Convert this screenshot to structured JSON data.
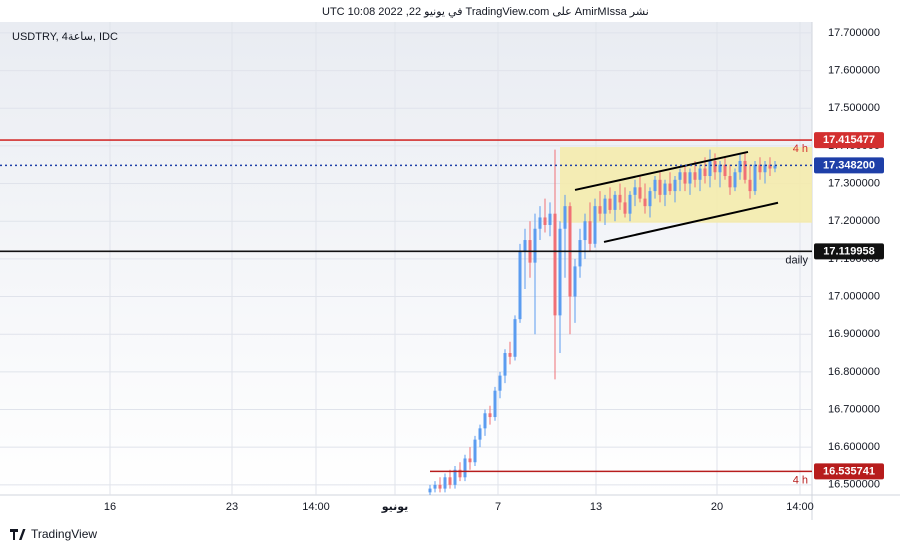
{
  "chart_data": {
    "type": "candlestick",
    "title": "نشر AmirMIssa على TradingView.com في يونيو 22, 2022 10:08 UTC",
    "subtitle": "USDTRY, 4ساعة, IDC",
    "source": "TradingView",
    "up_color": "#5b9cf0",
    "down_color": "#f07076",
    "grid": true,
    "xlim": [
      0,
      162.4
    ],
    "xticks": [
      {
        "value": 22,
        "label": "16"
      },
      {
        "value": 46.4,
        "label": "23"
      },
      {
        "value": 63.2,
        "label": "14:00"
      },
      {
        "value": 79,
        "label": "يونيو"
      },
      {
        "value": 99.6,
        "label": "7"
      },
      {
        "value": 119.2,
        "label": "13"
      },
      {
        "value": 143.4,
        "label": "20"
      },
      {
        "value": 160,
        "label": "14:00"
      }
    ],
    "ylim": [
      16.473,
      17.729
    ],
    "yticks": [
      {
        "value": 16.5,
        "label": "16.500000"
      },
      {
        "value": 16.6,
        "label": "16.600000"
      },
      {
        "value": 16.7,
        "label": "16.700000"
      },
      {
        "value": 16.8,
        "label": "16.800000"
      },
      {
        "value": 16.9,
        "label": "16.900000"
      },
      {
        "value": 17,
        "label": "17.000000"
      },
      {
        "value": 17.1,
        "label": "17.100000"
      },
      {
        "value": 17.2,
        "label": "17.200000"
      },
      {
        "value": 17.3,
        "label": "17.300000"
      },
      {
        "value": 17.4,
        "label": "17.400000"
      },
      {
        "value": 17.5,
        "label": "17.500000"
      },
      {
        "value": 17.6,
        "label": "17.600000"
      },
      {
        "value": 17.7,
        "label": "17.700000"
      }
    ],
    "x": [
      86,
      87,
      88,
      89,
      90,
      91,
      92,
      93,
      94,
      95,
      96,
      97,
      98,
      99,
      100,
      101,
      102,
      103,
      104,
      105,
      106,
      107,
      108,
      109,
      110,
      111,
      112,
      113,
      114,
      115,
      116,
      117,
      118,
      119,
      120,
      121,
      122,
      123,
      124,
      125,
      126,
      127,
      128,
      129,
      130,
      131,
      132,
      133,
      134,
      135,
      136,
      137,
      138,
      139,
      140,
      141,
      142,
      143,
      144,
      145,
      146,
      147,
      148,
      149,
      150,
      151,
      152,
      153,
      154,
      155
    ],
    "open": [
      16.48,
      16.49,
      16.5,
      16.49,
      16.52,
      16.5,
      16.54,
      16.52,
      16.57,
      16.56,
      16.62,
      16.65,
      16.69,
      16.68,
      16.75,
      16.79,
      16.85,
      16.84,
      16.94,
      17.12,
      17.15,
      17.09,
      17.18,
      17.21,
      17.19,
      17.22,
      16.95,
      17.18,
      17.24,
      17.0,
      17.08,
      17.15,
      17.2,
      17.14,
      17.24,
      17.22,
      17.26,
      17.23,
      17.27,
      17.25,
      17.22,
      17.27,
      17.29,
      17.26,
      17.24,
      17.28,
      17.31,
      17.27,
      17.3,
      17.28,
      17.31,
      17.33,
      17.3,
      17.33,
      17.31,
      17.34,
      17.32,
      17.36,
      17.33,
      17.35,
      17.32,
      17.29,
      17.33,
      17.36,
      17.31,
      17.28,
      17.35,
      17.33,
      17.35,
      17.34
    ],
    "high": [
      16.5,
      16.51,
      16.52,
      16.53,
      16.54,
      16.55,
      16.56,
      16.58,
      16.6,
      16.63,
      16.66,
      16.7,
      16.71,
      16.76,
      16.8,
      16.86,
      16.88,
      16.95,
      17.14,
      17.18,
      17.2,
      17.22,
      17.24,
      17.26,
      17.25,
      17.39,
      17.2,
      17.27,
      17.25,
      17.1,
      17.18,
      17.22,
      17.25,
      17.26,
      17.28,
      17.27,
      17.29,
      17.28,
      17.3,
      17.29,
      17.28,
      17.31,
      17.32,
      17.3,
      17.29,
      17.32,
      17.33,
      17.31,
      17.33,
      17.32,
      17.34,
      17.35,
      17.34,
      17.36,
      17.35,
      17.37,
      17.39,
      17.38,
      17.36,
      17.37,
      17.35,
      17.34,
      17.38,
      17.38,
      17.35,
      17.36,
      17.37,
      17.36,
      17.37,
      17.36
    ],
    "low": [
      16.47,
      16.48,
      16.48,
      16.48,
      16.49,
      16.49,
      16.51,
      16.51,
      16.54,
      16.55,
      16.6,
      16.63,
      16.66,
      16.67,
      16.73,
      16.77,
      16.82,
      16.83,
      16.93,
      17.02,
      17.05,
      16.9,
      17.15,
      17.17,
      17.16,
      16.78,
      16.85,
      17.05,
      16.9,
      16.93,
      17.05,
      17.1,
      17.12,
      17.13,
      17.2,
      17.19,
      17.22,
      17.2,
      17.23,
      17.21,
      17.2,
      17.24,
      17.25,
      17.22,
      17.21,
      17.26,
      17.25,
      17.24,
      17.27,
      17.25,
      17.28,
      17.28,
      17.27,
      17.29,
      17.28,
      17.3,
      17.29,
      17.31,
      17.29,
      17.31,
      17.27,
      17.28,
      17.31,
      17.3,
      17.26,
      17.27,
      17.31,
      17.3,
      17.32,
      17.33
    ],
    "close": [
      16.49,
      16.5,
      16.49,
      16.52,
      16.5,
      16.54,
      16.52,
      16.57,
      16.56,
      16.62,
      16.65,
      16.69,
      16.68,
      16.75,
      16.79,
      16.85,
      16.84,
      16.94,
      17.12,
      17.15,
      17.09,
      17.18,
      17.21,
      17.19,
      17.22,
      16.95,
      17.18,
      17.24,
      17.0,
      17.08,
      17.15,
      17.2,
      17.14,
      17.24,
      17.22,
      17.26,
      17.23,
      17.27,
      17.25,
      17.22,
      17.27,
      17.29,
      17.26,
      17.24,
      17.28,
      17.31,
      17.27,
      17.3,
      17.28,
      17.31,
      17.33,
      17.3,
      17.33,
      17.31,
      17.34,
      17.32,
      17.36,
      17.33,
      17.35,
      17.32,
      17.29,
      17.33,
      17.36,
      17.31,
      17.28,
      17.35,
      17.33,
      17.35,
      17.34,
      17.348
    ],
    "zone": {
      "x": [
        112,
        162.4
      ],
      "y": [
        17.196,
        17.397
      ],
      "color": "#f5eba8"
    },
    "trendlines": [
      {
        "x": [
          115,
          149.6
        ],
        "y": [
          17.283,
          17.384
        ]
      },
      {
        "x": [
          120.8,
          155.6
        ],
        "y": [
          17.145,
          17.249
        ]
      }
    ],
    "levels": [
      {
        "value": 17.415477,
        "price_label": "17.415477",
        "color": "#d32f2f",
        "style": "solid",
        "text": "4 h"
      },
      {
        "value": 17.3482,
        "price_label": "17.348200",
        "color": "#1e3fa8",
        "style": "dotted"
      },
      {
        "value": 17.119958,
        "price_label": "17.119958",
        "color": "#111111",
        "style": "solid",
        "text": "daily"
      },
      {
        "value": 16.535741,
        "price_label": "16.535741",
        "color": "#b71c1c",
        "style": "solid",
        "text": "4 h",
        "x_start": 86
      }
    ]
  }
}
